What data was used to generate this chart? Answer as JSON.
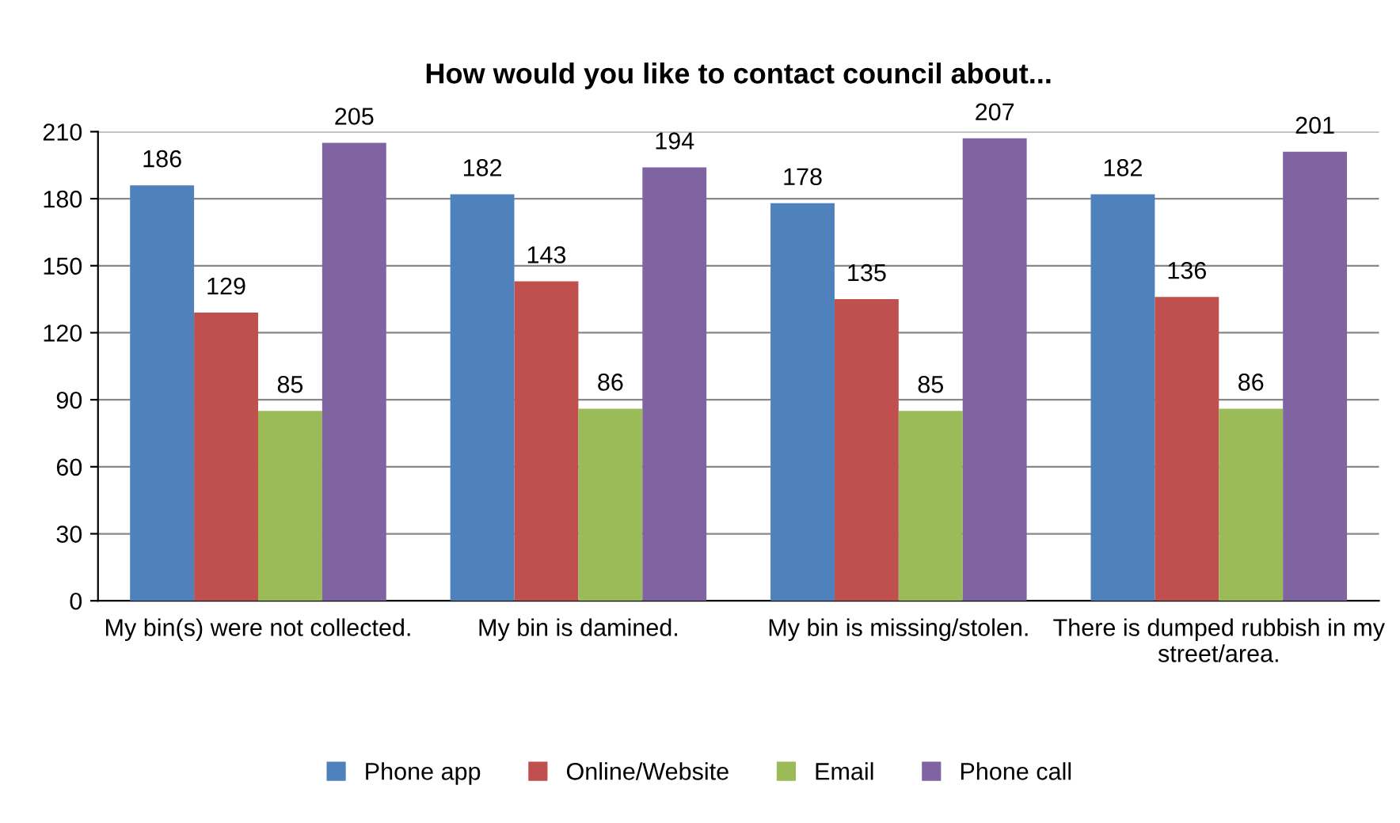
{
  "chart_data": {
    "type": "bar",
    "title": "How would you like to contact council about...",
    "categories": [
      "My bin(s) were not collected.",
      "My bin is damined.",
      "My bin is missing/stolen.",
      "There is dumped rubbish in my street/area."
    ],
    "series": [
      {
        "name": "Phone app",
        "color": "#4f81bd",
        "values": [
          186,
          182,
          178,
          182
        ]
      },
      {
        "name": "Online/Website",
        "color": "#c0504d",
        "values": [
          129,
          143,
          135,
          136
        ]
      },
      {
        "name": "Email",
        "color": "#9bbb59",
        "values": [
          85,
          86,
          85,
          86
        ]
      },
      {
        "name": "Phone call",
        "color": "#8064a2",
        "values": [
          205,
          194,
          207,
          201
        ]
      }
    ],
    "ylim": [
      0,
      210
    ],
    "yticks": [
      0,
      30,
      60,
      90,
      120,
      150,
      180,
      210
    ],
    "grid": "y",
    "legend": "bottom",
    "data_labels": true
  }
}
